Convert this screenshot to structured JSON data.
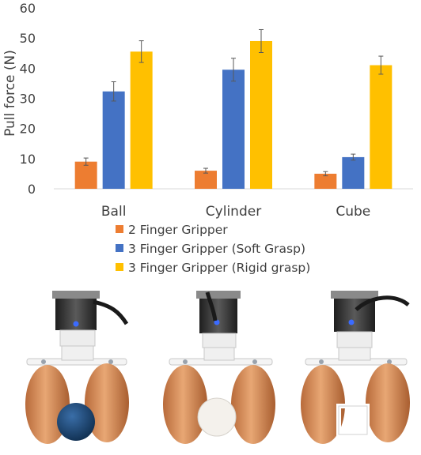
{
  "chart_data": {
    "type": "bar",
    "categories": [
      "Ball",
      "Cylinder",
      "Cube"
    ],
    "series": [
      {
        "name": "2 Finger Gripper",
        "color": "#ED7D31",
        "values": [
          9.0,
          6.0,
          5.0
        ],
        "errors": [
          1.2,
          0.8,
          0.7
        ]
      },
      {
        "name": "3 Finger Gripper (Soft Grasp)",
        "color": "#4472C4",
        "values": [
          32.3,
          39.5,
          10.5
        ],
        "errors": [
          3.2,
          3.8,
          1.0
        ]
      },
      {
        "name": "3 Finger Gripper (Rigid grasp)",
        "color": "#FFC000",
        "values": [
          45.5,
          49.0,
          41.0
        ],
        "errors": [
          3.6,
          3.8,
          3.0
        ]
      }
    ],
    "xlabel": "",
    "ylabel": "Pull force (N)",
    "ylim": [
      0,
      60
    ],
    "yticks": [
      "0",
      "10",
      "20",
      "30",
      "40",
      "50",
      "60"
    ],
    "grid": false,
    "legend_position": "bottom"
  },
  "photos": [
    {
      "object": "ball",
      "object_color": "#1F4E79"
    },
    {
      "object": "cylinder",
      "object_color": "#F4F1EC"
    },
    {
      "object": "cube",
      "object_color": "#FFFFFF"
    }
  ],
  "colors": {
    "finger": "#D9905A",
    "mount": "#F2F2F2",
    "motor": "#3A3A3A",
    "led": "#3B6BFF"
  }
}
